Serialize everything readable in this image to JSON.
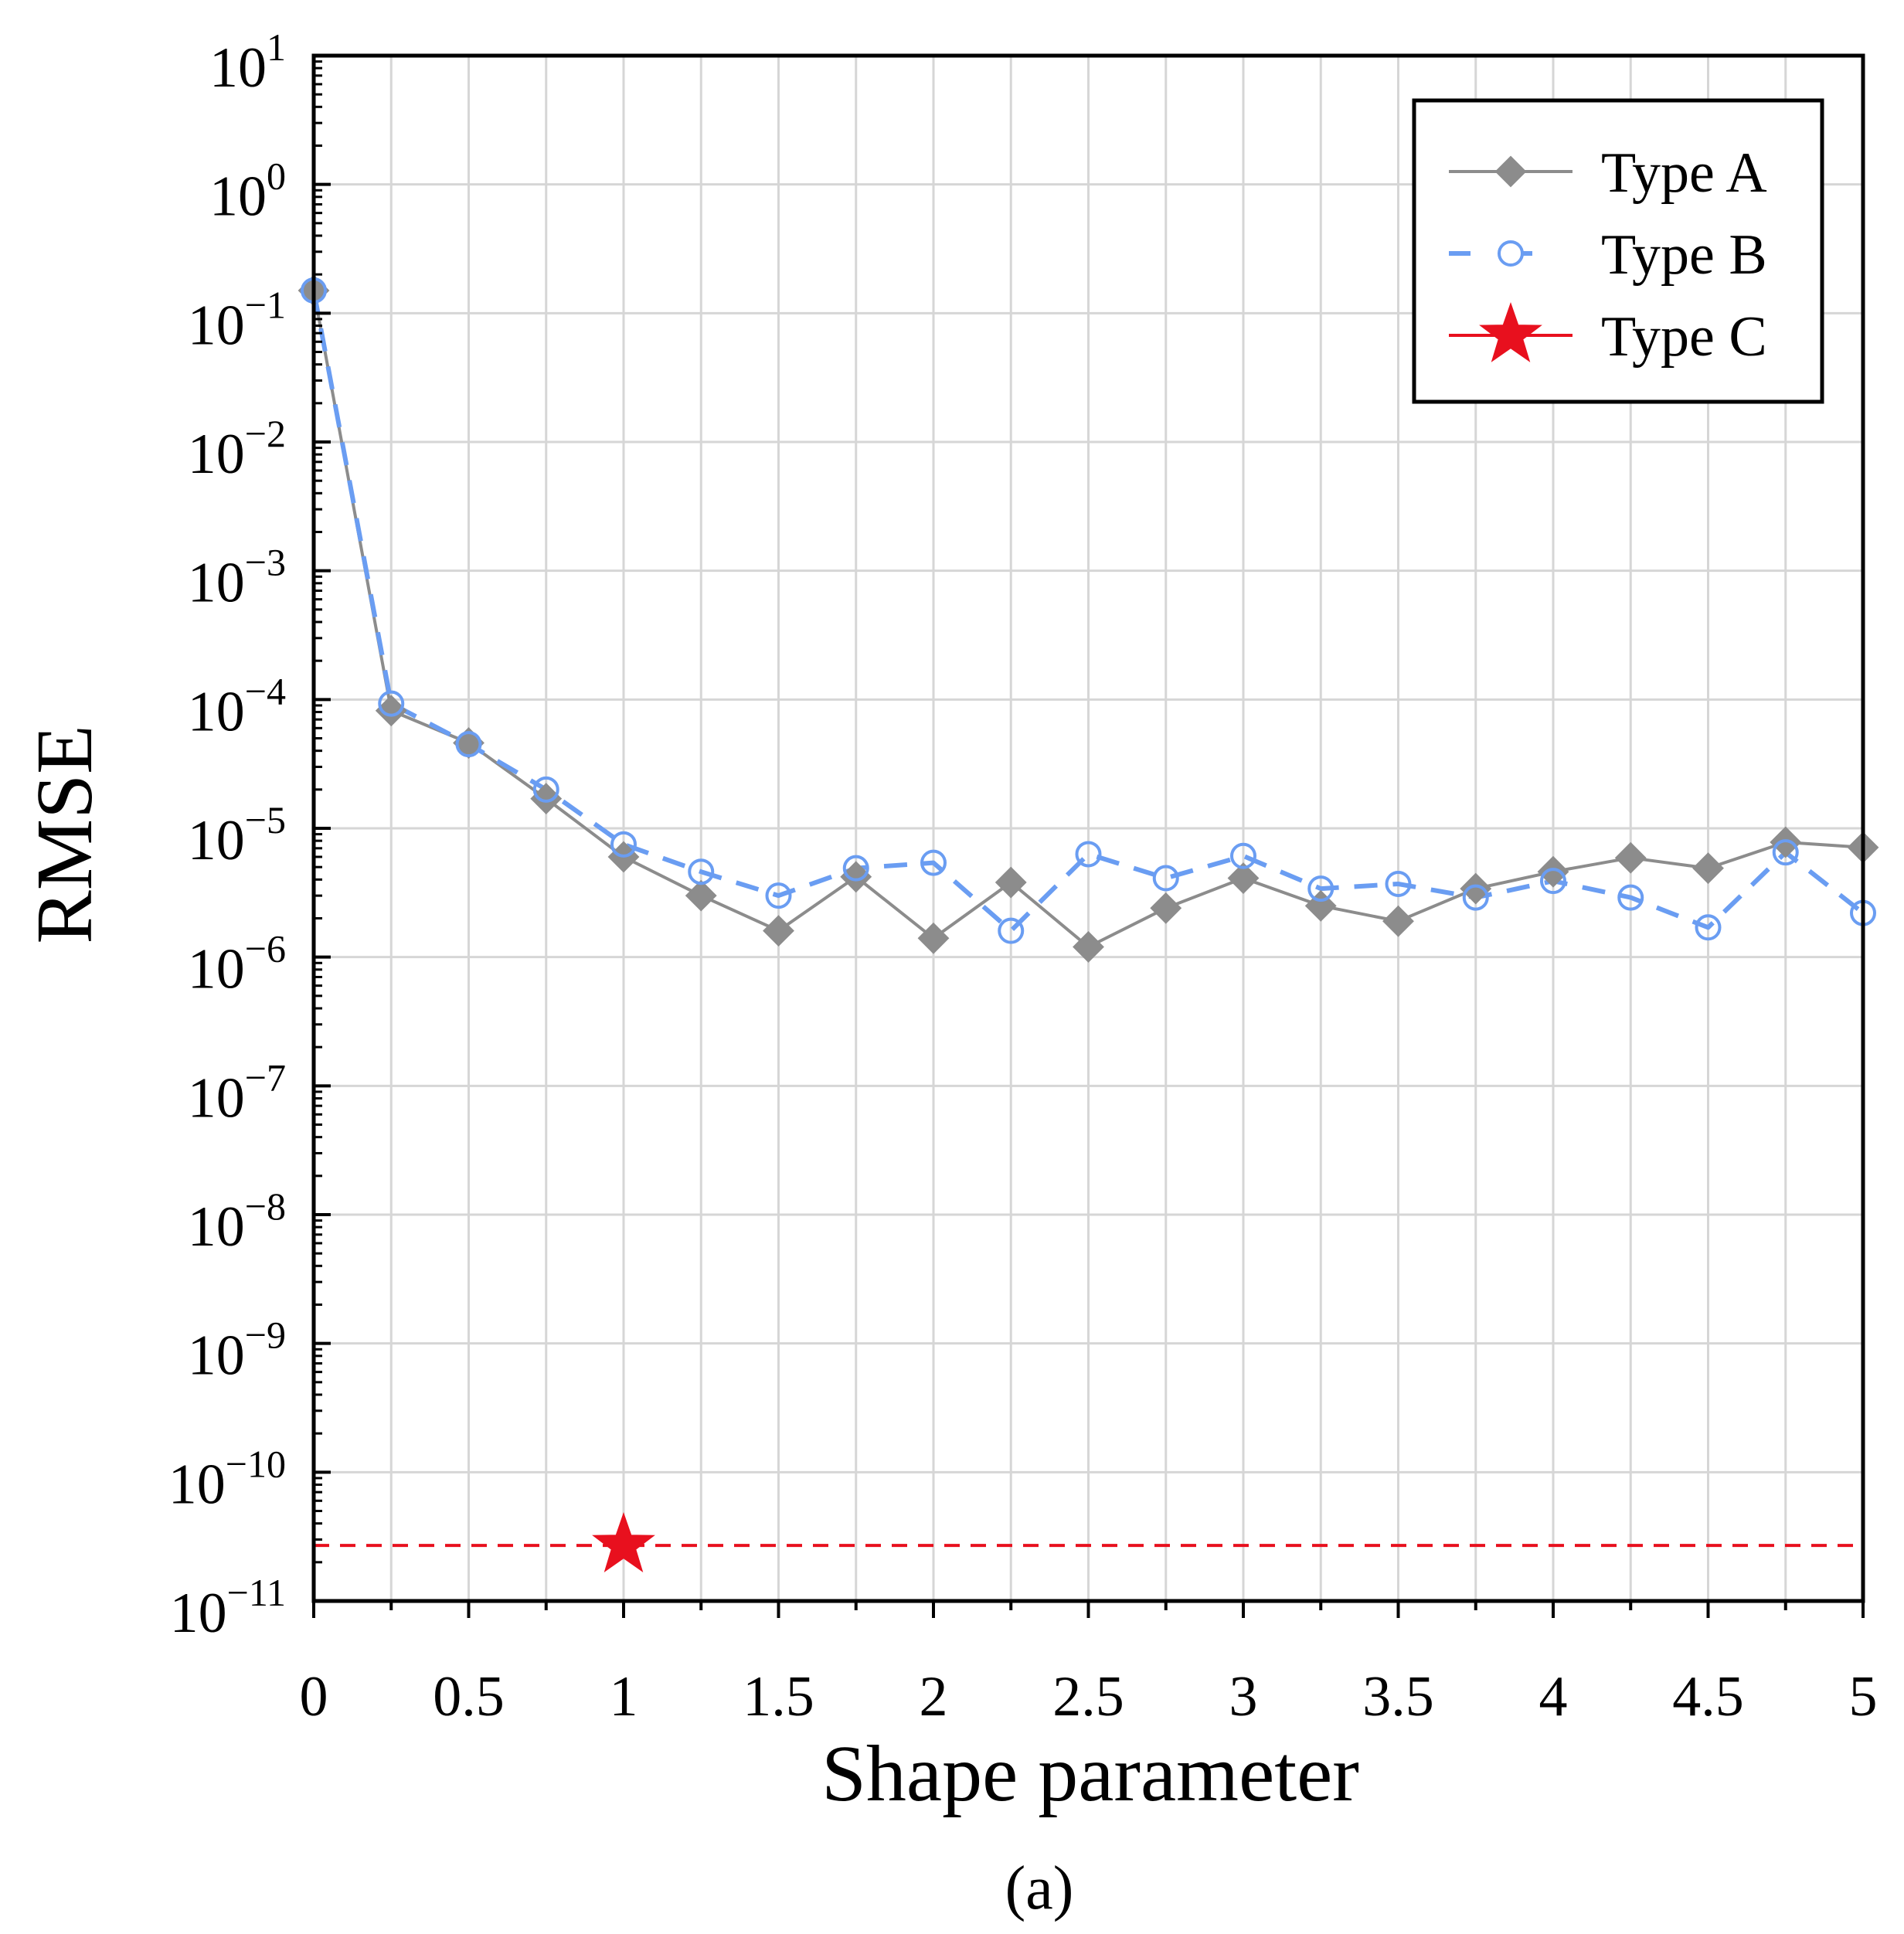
{
  "chart_data": {
    "type": "line",
    "title": "",
    "xlabel": "Shape parameter",
    "ylabel": "RMSE",
    "caption": "(a)",
    "xlim": [
      0,
      5
    ],
    "ylim_log10": [
      -11,
      1
    ],
    "yscale": "log",
    "grid": true,
    "legend_position": "top-right",
    "x_ticks": [
      {
        "value": 0,
        "label": "0"
      },
      {
        "value": 0.5,
        "label": "0.5"
      },
      {
        "value": 1,
        "label": "1"
      },
      {
        "value": 1.5,
        "label": "1.5"
      },
      {
        "value": 2,
        "label": "2"
      },
      {
        "value": 2.5,
        "label": "2.5"
      },
      {
        "value": 3,
        "label": "3"
      },
      {
        "value": 3.5,
        "label": "3.5"
      },
      {
        "value": 4,
        "label": "4"
      },
      {
        "value": 4.5,
        "label": "4.5"
      },
      {
        "value": 5,
        "label": "5"
      }
    ],
    "y_ticks": [
      {
        "exp": 1,
        "base": "10",
        "sup": "1"
      },
      {
        "exp": 0,
        "base": "10",
        "sup": "0"
      },
      {
        "exp": -1,
        "base": "10",
        "sup": "−1"
      },
      {
        "exp": -2,
        "base": "10",
        "sup": "−2"
      },
      {
        "exp": -3,
        "base": "10",
        "sup": "−3"
      },
      {
        "exp": -4,
        "base": "10",
        "sup": "−4"
      },
      {
        "exp": -5,
        "base": "10",
        "sup": "−5"
      },
      {
        "exp": -6,
        "base": "10",
        "sup": "−6"
      },
      {
        "exp": -7,
        "base": "10",
        "sup": "−7"
      },
      {
        "exp": -8,
        "base": "10",
        "sup": "−8"
      },
      {
        "exp": -9,
        "base": "10",
        "sup": "−9"
      },
      {
        "exp": -10,
        "base": "10",
        "sup": "−10"
      },
      {
        "exp": -11,
        "base": "10",
        "sup": "−11"
      }
    ],
    "x": [
      0,
      0.25,
      0.5,
      0.75,
      1,
      1.25,
      1.5,
      1.75,
      2,
      2.25,
      2.5,
      2.75,
      3,
      3.25,
      3.5,
      3.75,
      4,
      4.25,
      4.5,
      4.75,
      5
    ],
    "series": [
      {
        "name": "Type A",
        "color": "#8c8c8c",
        "marker": "diamond",
        "line": "solid",
        "values": [
          0.15,
          8.2e-05,
          4.6e-05,
          1.7e-05,
          6e-06,
          3e-06,
          1.6e-06,
          4.2e-06,
          1.4e-06,
          3.8e-06,
          1.2e-06,
          2.4e-06,
          4.1e-06,
          2.5e-06,
          1.9e-06,
          3.4e-06,
          4.6e-06,
          5.9e-06,
          4.9e-06,
          7.8e-06,
          7.1e-06
        ]
      },
      {
        "name": "Type B",
        "color": "#6a9df2",
        "marker": "open-circle",
        "line": "dashed",
        "values": [
          0.15,
          9.3e-05,
          4.5e-05,
          2e-05,
          7.5e-06,
          4.6e-06,
          3e-06,
          4.9e-06,
          5.4e-06,
          1.6e-06,
          6.3e-06,
          4.1e-06,
          6.1e-06,
          3.4e-06,
          3.7e-06,
          2.9e-06,
          3.9e-06,
          2.9e-06,
          1.7e-06,
          6.5e-06,
          2.2e-06
        ]
      },
      {
        "name": "Type C",
        "color": "#e8101e",
        "marker": "star",
        "line": "dashed",
        "x": [
          1
        ],
        "values": [
          2.7e-11
        ],
        "reference_line": 2.7e-11
      }
    ]
  }
}
